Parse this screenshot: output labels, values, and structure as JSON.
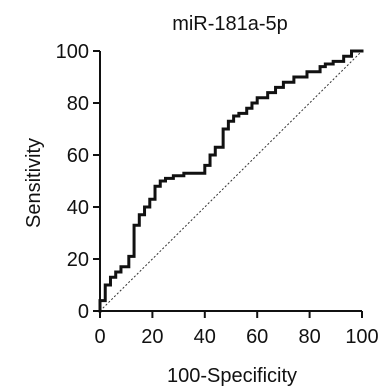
{
  "chart_data": {
    "type": "line",
    "title": "miR-181a-5p",
    "xlabel": "100-Specificity",
    "ylabel": "Sensitivity",
    "xlim": [
      0,
      100
    ],
    "ylim": [
      0,
      100
    ],
    "x_ticks": [
      "0",
      "20",
      "40",
      "60",
      "80",
      "100"
    ],
    "y_ticks": [
      "0",
      "20",
      "40",
      "60",
      "80",
      "100"
    ],
    "grid": false,
    "legend": "none",
    "colors": {
      "roc_curve": "#111111",
      "reference_line": "#333333",
      "axes": "#111111"
    },
    "series": [
      {
        "x": [
          0,
          0,
          2,
          2,
          4,
          4,
          6,
          6,
          8,
          8,
          11,
          11,
          13,
          13,
          15,
          15,
          17,
          17,
          19,
          19,
          21,
          21,
          23,
          23,
          25,
          25,
          28,
          28,
          32,
          32,
          40,
          40,
          42,
          42,
          44,
          44,
          47,
          47,
          49,
          49,
          51,
          51,
          53,
          53,
          56,
          56,
          58,
          58,
          60,
          60,
          64,
          64,
          67,
          67,
          70,
          70,
          74,
          74,
          79,
          79,
          84,
          84,
          86,
          86,
          89,
          89,
          93,
          93,
          96,
          96,
          100
        ],
        "y": [
          0,
          4,
          4,
          10,
          10,
          13,
          13,
          15,
          15,
          17,
          17,
          21,
          21,
          33,
          33,
          37,
          37,
          40,
          40,
          43,
          43,
          48,
          48,
          50,
          50,
          51,
          51,
          52,
          52,
          53,
          53,
          56,
          56,
          60,
          60,
          63,
          63,
          70,
          70,
          73,
          73,
          75,
          75,
          76,
          76,
          78,
          78,
          80,
          80,
          82,
          82,
          84,
          84,
          86,
          86,
          88,
          88,
          90,
          90,
          92,
          92,
          94,
          94,
          95,
          95,
          96,
          96,
          98,
          98,
          100,
          100
        ]
      }
    ],
    "reference_line": {
      "x": [
        0,
        100
      ],
      "y": [
        0,
        100
      ]
    }
  }
}
